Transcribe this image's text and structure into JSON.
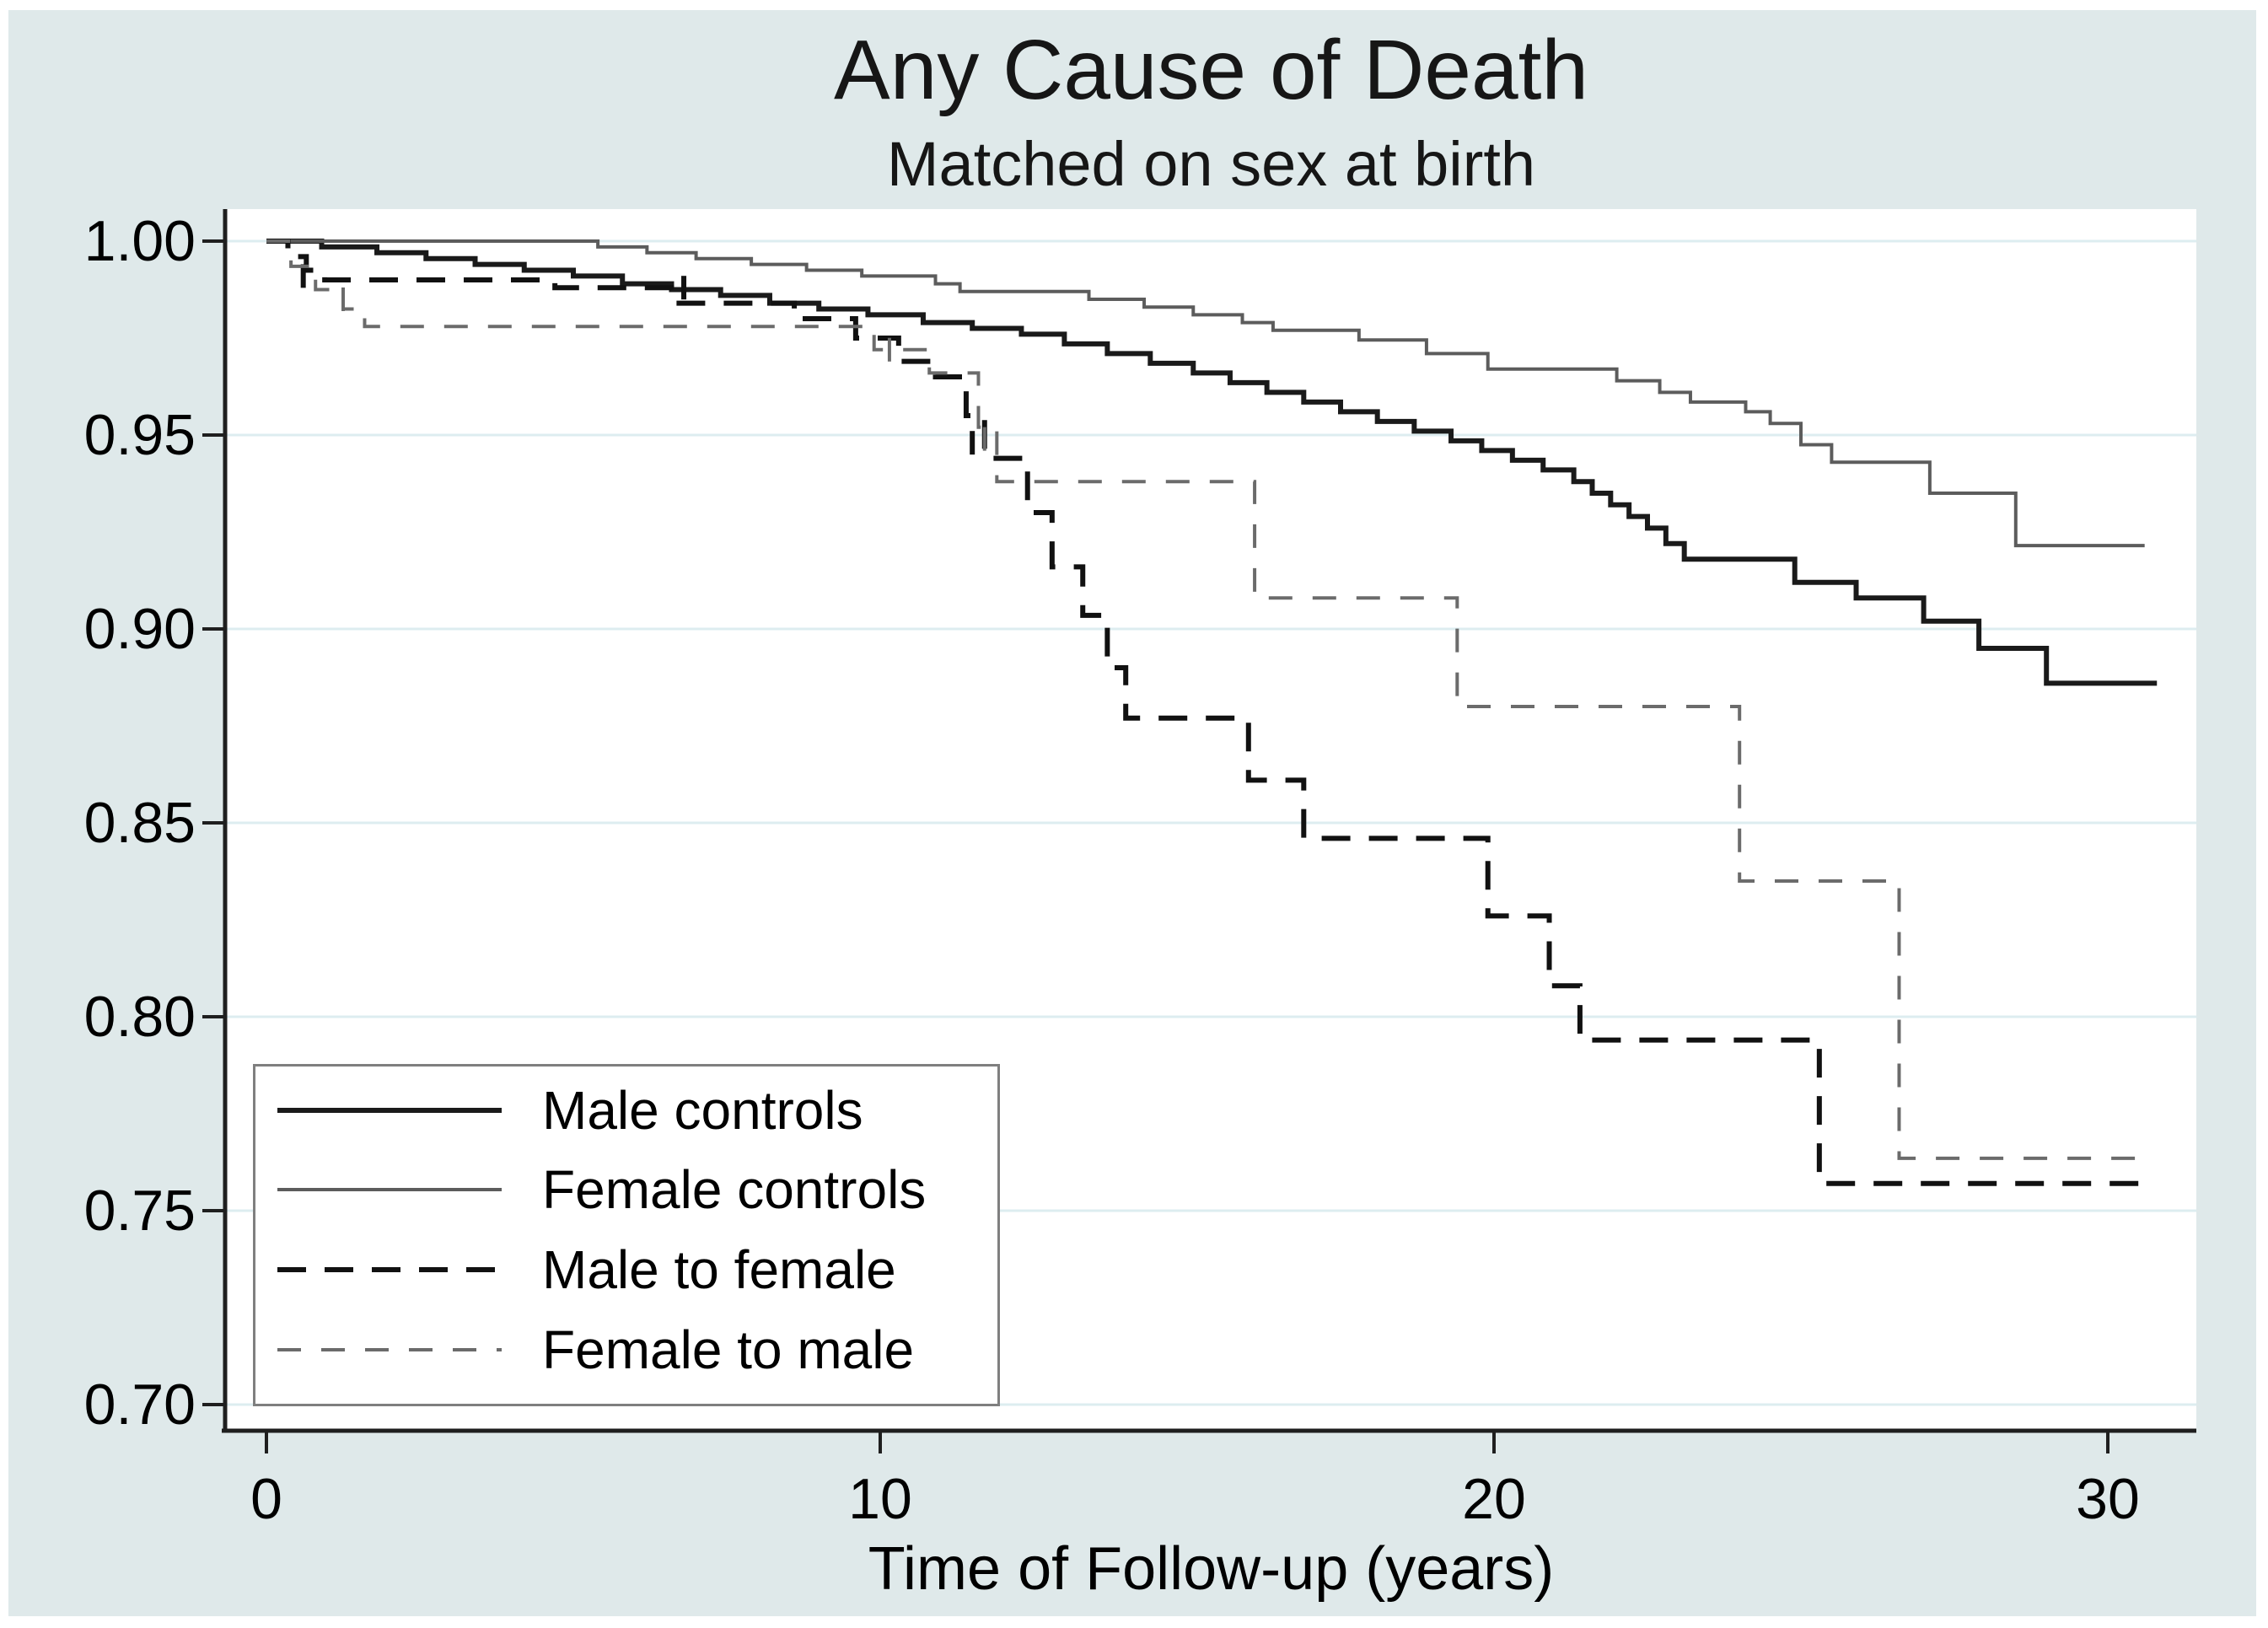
{
  "title": "Any Cause of Death",
  "subtitle": "Matched on sex at birth",
  "colors": {
    "figure_background": "#dfe9ea",
    "plot_background": "#ffffff",
    "gridline": "#ddedf0",
    "axis": "#1f1f1f",
    "text": "#000000",
    "legend_border": "#7f7f7f",
    "male_controls": "#1a1a1a",
    "female_controls": "#5c5c5c",
    "male_to_female": "#111111",
    "female_to_male": "#6b6b6b"
  },
  "chart_data": {
    "type": "line",
    "variant": "kaplan-meier-survival-step",
    "title": "Any Cause of Death",
    "subtitle": "Matched on sex at birth",
    "xlabel": "Time of Follow-up (years)",
    "ylabel": "",
    "xlim": [
      0,
      31.5
    ],
    "ylim": [
      0.7,
      1.005
    ],
    "grid": true,
    "legend_position": "bottom-left",
    "x_ticks": [
      {
        "label": "0",
        "value": 0
      },
      {
        "label": "10",
        "value": 10
      },
      {
        "label": "20",
        "value": 20
      },
      {
        "label": "30",
        "value": 30
      }
    ],
    "y_ticks": [
      {
        "label": "1.00",
        "value": 1.0
      },
      {
        "label": "0.95",
        "value": 0.95
      },
      {
        "label": "0.90",
        "value": 0.9
      },
      {
        "label": "0.85",
        "value": 0.85
      },
      {
        "label": "0.80",
        "value": 0.8
      },
      {
        "label": "0.75",
        "value": 0.75
      },
      {
        "label": "0.70",
        "value": 0.7
      }
    ],
    "series": [
      {
        "name": "Male controls",
        "style": "solid",
        "color": "#1a1a1a",
        "stroke_width": 6,
        "dash": null,
        "points": [
          [
            0,
            1.0
          ],
          [
            0.9,
            0.9985
          ],
          [
            1.8,
            0.997
          ],
          [
            2.6,
            0.9955
          ],
          [
            3.4,
            0.994
          ],
          [
            4.2,
            0.9925
          ],
          [
            5.0,
            0.991
          ],
          [
            5.8,
            0.989
          ],
          [
            6.6,
            0.9875
          ],
          [
            7.4,
            0.986
          ],
          [
            8.2,
            0.984
          ],
          [
            9.0,
            0.9825
          ],
          [
            9.8,
            0.981
          ],
          [
            10.7,
            0.979
          ],
          [
            11.5,
            0.9775
          ],
          [
            12.3,
            0.976
          ],
          [
            13.0,
            0.9735
          ],
          [
            13.7,
            0.971
          ],
          [
            14.4,
            0.9685
          ],
          [
            15.1,
            0.966
          ],
          [
            15.7,
            0.9635
          ],
          [
            16.3,
            0.961
          ],
          [
            16.9,
            0.9585
          ],
          [
            17.5,
            0.956
          ],
          [
            18.1,
            0.9535
          ],
          [
            18.7,
            0.951
          ],
          [
            19.3,
            0.9485
          ],
          [
            19.8,
            0.946
          ],
          [
            20.3,
            0.9435
          ],
          [
            20.8,
            0.941
          ],
          [
            21.3,
            0.938
          ],
          [
            21.6,
            0.935
          ],
          [
            21.9,
            0.932
          ],
          [
            22.2,
            0.929
          ],
          [
            22.5,
            0.926
          ],
          [
            22.8,
            0.922
          ],
          [
            23.1,
            0.918
          ],
          [
            24.9,
            0.912
          ],
          [
            25.9,
            0.908
          ],
          [
            27.0,
            0.902
          ],
          [
            27.9,
            0.895
          ],
          [
            29.0,
            0.886
          ],
          [
            30.8,
            0.886
          ]
        ],
        "censor_marks": []
      },
      {
        "name": "Female controls",
        "style": "solid",
        "color": "#5c5c5c",
        "stroke_width": 4,
        "dash": null,
        "points": [
          [
            0,
            1.0
          ],
          [
            5.4,
            0.9985
          ],
          [
            6.2,
            0.997
          ],
          [
            7.0,
            0.9955
          ],
          [
            7.9,
            0.994
          ],
          [
            8.8,
            0.9925
          ],
          [
            9.7,
            0.991
          ],
          [
            10.9,
            0.989
          ],
          [
            11.3,
            0.987
          ],
          [
            13.4,
            0.985
          ],
          [
            14.3,
            0.983
          ],
          [
            15.1,
            0.981
          ],
          [
            15.9,
            0.979
          ],
          [
            16.4,
            0.977
          ],
          [
            17.8,
            0.9745
          ],
          [
            18.9,
            0.971
          ],
          [
            19.9,
            0.967
          ],
          [
            22.0,
            0.964
          ],
          [
            22.7,
            0.961
          ],
          [
            23.2,
            0.9585
          ],
          [
            24.1,
            0.956
          ],
          [
            24.5,
            0.953
          ],
          [
            25.0,
            0.9475
          ],
          [
            25.5,
            0.943
          ],
          [
            27.1,
            0.935
          ],
          [
            28.5,
            0.9215
          ],
          [
            30.6,
            0.9215
          ]
        ],
        "censor_marks": []
      },
      {
        "name": "Male to female",
        "style": "dashed",
        "color": "#111111",
        "stroke_width": 6,
        "dash": [
          34,
          22
        ],
        "points": [
          [
            0,
            1.0
          ],
          [
            0.35,
            0.996
          ],
          [
            0.65,
            0.9925
          ],
          [
            0.95,
            0.99
          ],
          [
            4.7,
            0.988
          ],
          [
            6.6,
            0.984
          ],
          [
            8.6,
            0.98
          ],
          [
            9.6,
            0.975
          ],
          [
            10.3,
            0.969
          ],
          [
            10.9,
            0.965
          ],
          [
            11.4,
            0.955
          ],
          [
            11.7,
            0.944
          ],
          [
            12.4,
            0.93
          ],
          [
            12.8,
            0.916
          ],
          [
            13.3,
            0.9035
          ],
          [
            13.7,
            0.89
          ],
          [
            14.0,
            0.877
          ],
          [
            16.0,
            0.861
          ],
          [
            16.9,
            0.846
          ],
          [
            19.9,
            0.826
          ],
          [
            20.9,
            0.808
          ],
          [
            21.4,
            0.794
          ],
          [
            25.3,
            0.757
          ],
          [
            30.7,
            0.757
          ]
        ],
        "censor_marks": [
          [
            0.6,
            0.991
          ],
          [
            6.8,
            0.988
          ],
          [
            11.5,
            0.948
          ]
        ]
      },
      {
        "name": "Female to male",
        "style": "dashed",
        "color": "#6b6b6b",
        "stroke_width": 4,
        "dash": [
          28,
          24
        ],
        "points": [
          [
            0,
            1.0
          ],
          [
            0.4,
            0.9935
          ],
          [
            0.8,
            0.9875
          ],
          [
            1.25,
            0.9825
          ],
          [
            1.6,
            0.978
          ],
          [
            9.9,
            0.972
          ],
          [
            10.8,
            0.966
          ],
          [
            11.6,
            0.952
          ],
          [
            11.9,
            0.938
          ],
          [
            16.1,
            0.908
          ],
          [
            19.4,
            0.88
          ],
          [
            24.0,
            0.835
          ],
          [
            26.6,
            0.7635
          ],
          [
            30.7,
            0.7635
          ]
        ],
        "censor_marks": [
          [
            1.25,
            0.985
          ],
          [
            10.15,
            0.972
          ],
          [
            11.7,
            0.949
          ]
        ]
      }
    ]
  },
  "legend": {
    "position": "bottom-left",
    "items": [
      "Male controls",
      "Female controls",
      "Male to female",
      "Female to male"
    ]
  }
}
